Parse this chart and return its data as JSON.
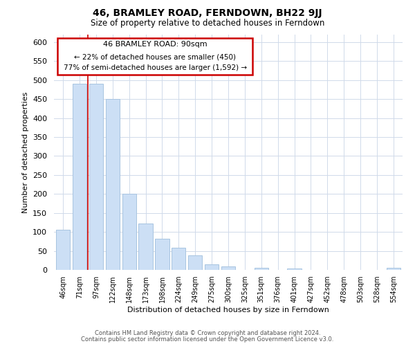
{
  "title": "46, BRAMLEY ROAD, FERNDOWN, BH22 9JJ",
  "subtitle": "Size of property relative to detached houses in Ferndown",
  "xlabel": "Distribution of detached houses by size in Ferndown",
  "ylabel": "Number of detached properties",
  "bar_labels": [
    "46sqm",
    "71sqm",
    "97sqm",
    "122sqm",
    "148sqm",
    "173sqm",
    "198sqm",
    "224sqm",
    "249sqm",
    "275sqm",
    "300sqm",
    "325sqm",
    "351sqm",
    "376sqm",
    "401sqm",
    "427sqm",
    "452sqm",
    "478sqm",
    "503sqm",
    "528sqm",
    "554sqm"
  ],
  "bar_heights": [
    105,
    490,
    490,
    450,
    200,
    122,
    82,
    58,
    38,
    15,
    10,
    0,
    5,
    0,
    3,
    0,
    0,
    0,
    0,
    0,
    5
  ],
  "bar_color": "#ccdff5",
  "bar_edge_color": "#a8c4e0",
  "red_line_x": 1.5,
  "ylim": [
    0,
    620
  ],
  "yticks": [
    0,
    50,
    100,
    150,
    200,
    250,
    300,
    350,
    400,
    450,
    500,
    550,
    600
  ],
  "annotation_title": "46 BRAMLEY ROAD: 90sqm",
  "annotation_line1": "← 22% of detached houses are smaller (450)",
  "annotation_line2": "77% of semi-detached houses are larger (1,592) →",
  "footer_line1": "Contains HM Land Registry data © Crown copyright and database right 2024.",
  "footer_line2": "Contains public sector information licensed under the Open Government Licence v3.0.",
  "background_color": "#ffffff",
  "grid_color": "#d0daea"
}
